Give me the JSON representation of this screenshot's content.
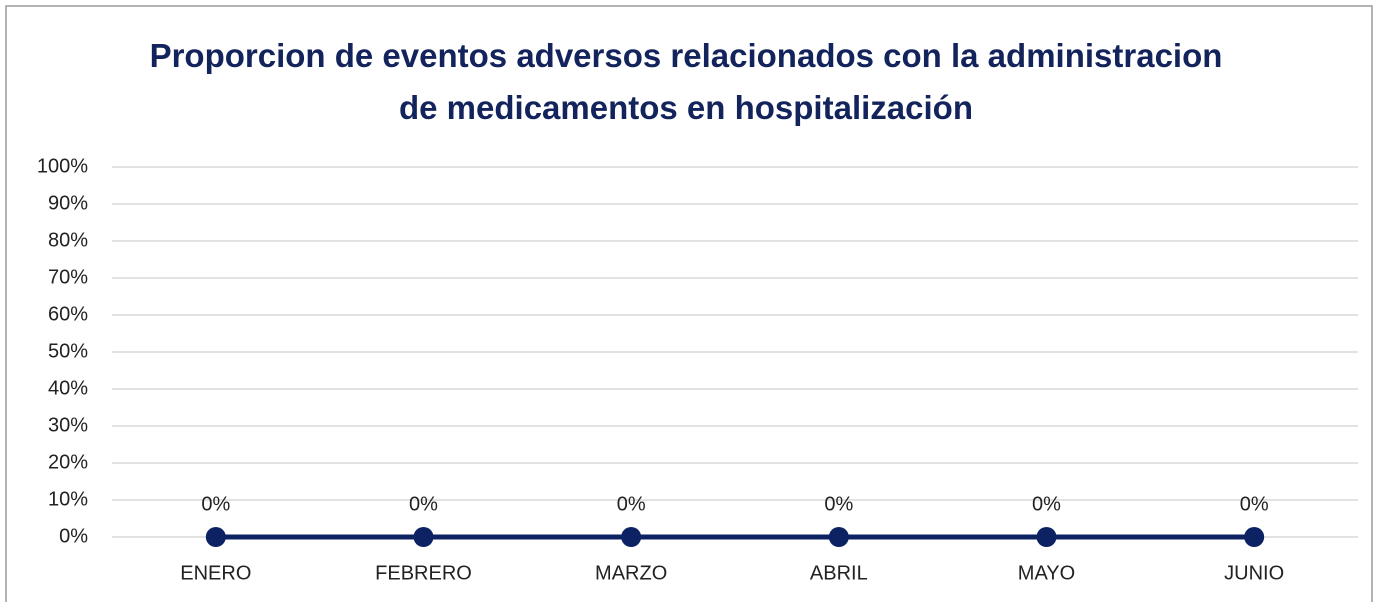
{
  "chart_data": {
    "type": "line",
    "title": "Proporcion de eventos adversos relacionados con la administracion de medicamentos en hospitalización",
    "categories": [
      "ENERO",
      "FEBRERO",
      "MARZO",
      "ABRIL",
      "MAYO",
      "JUNIO"
    ],
    "values": [
      0,
      0,
      0,
      0,
      0,
      0
    ],
    "value_labels": [
      "0%",
      "0%",
      "0%",
      "0%",
      "0%",
      "0%"
    ],
    "color": "#0d2263",
    "ylim": [
      0,
      100
    ],
    "yticks": [
      {
        "value": 0,
        "label": "0%"
      },
      {
        "value": 10,
        "label": "10%"
      },
      {
        "value": 20,
        "label": "20%"
      },
      {
        "value": 30,
        "label": "30%"
      },
      {
        "value": 40,
        "label": "40%"
      },
      {
        "value": 50,
        "label": "50%"
      },
      {
        "value": 60,
        "label": "60%"
      },
      {
        "value": 70,
        "label": "70%"
      },
      {
        "value": 80,
        "label": "80%"
      },
      {
        "value": 90,
        "label": "90%"
      },
      {
        "value": 100,
        "label": "100%"
      }
    ],
    "grid": true
  }
}
